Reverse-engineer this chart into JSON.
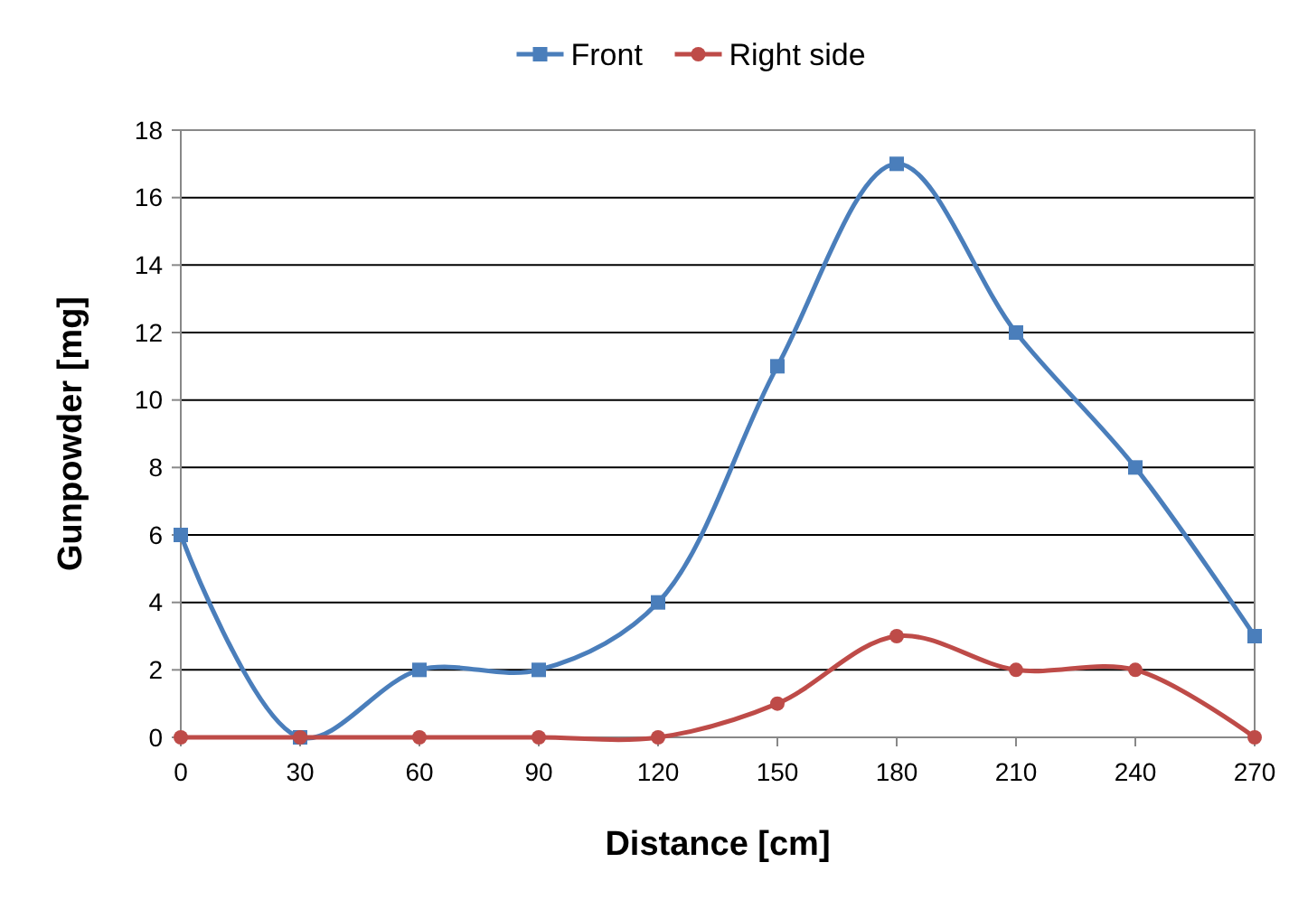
{
  "chart_data": {
    "type": "line",
    "xlabel": "Distance  [cm]",
    "ylabel": "Gunpowder  [mg]",
    "x": [
      0,
      30,
      60,
      90,
      120,
      150,
      180,
      210,
      240,
      270
    ],
    "series": [
      {
        "name": "Front",
        "color": "#4a7ebb",
        "marker": "square",
        "values": [
          6,
          0,
          2,
          2,
          4,
          11,
          17,
          12,
          8,
          3
        ]
      },
      {
        "name": "Right side",
        "color": "#be4b48",
        "marker": "circle",
        "values": [
          0,
          0,
          0,
          0,
          0,
          1,
          3,
          2,
          2,
          0
        ]
      }
    ],
    "xlim": [
      0,
      270
    ],
    "xticks": [
      0,
      30,
      60,
      90,
      120,
      150,
      180,
      210,
      240,
      270
    ],
    "ylim": [
      0,
      18
    ],
    "yticks": [
      0,
      2,
      4,
      6,
      8,
      10,
      12,
      14,
      16,
      18
    ],
    "grid": "y",
    "legend": "top",
    "line_style": "solid"
  }
}
